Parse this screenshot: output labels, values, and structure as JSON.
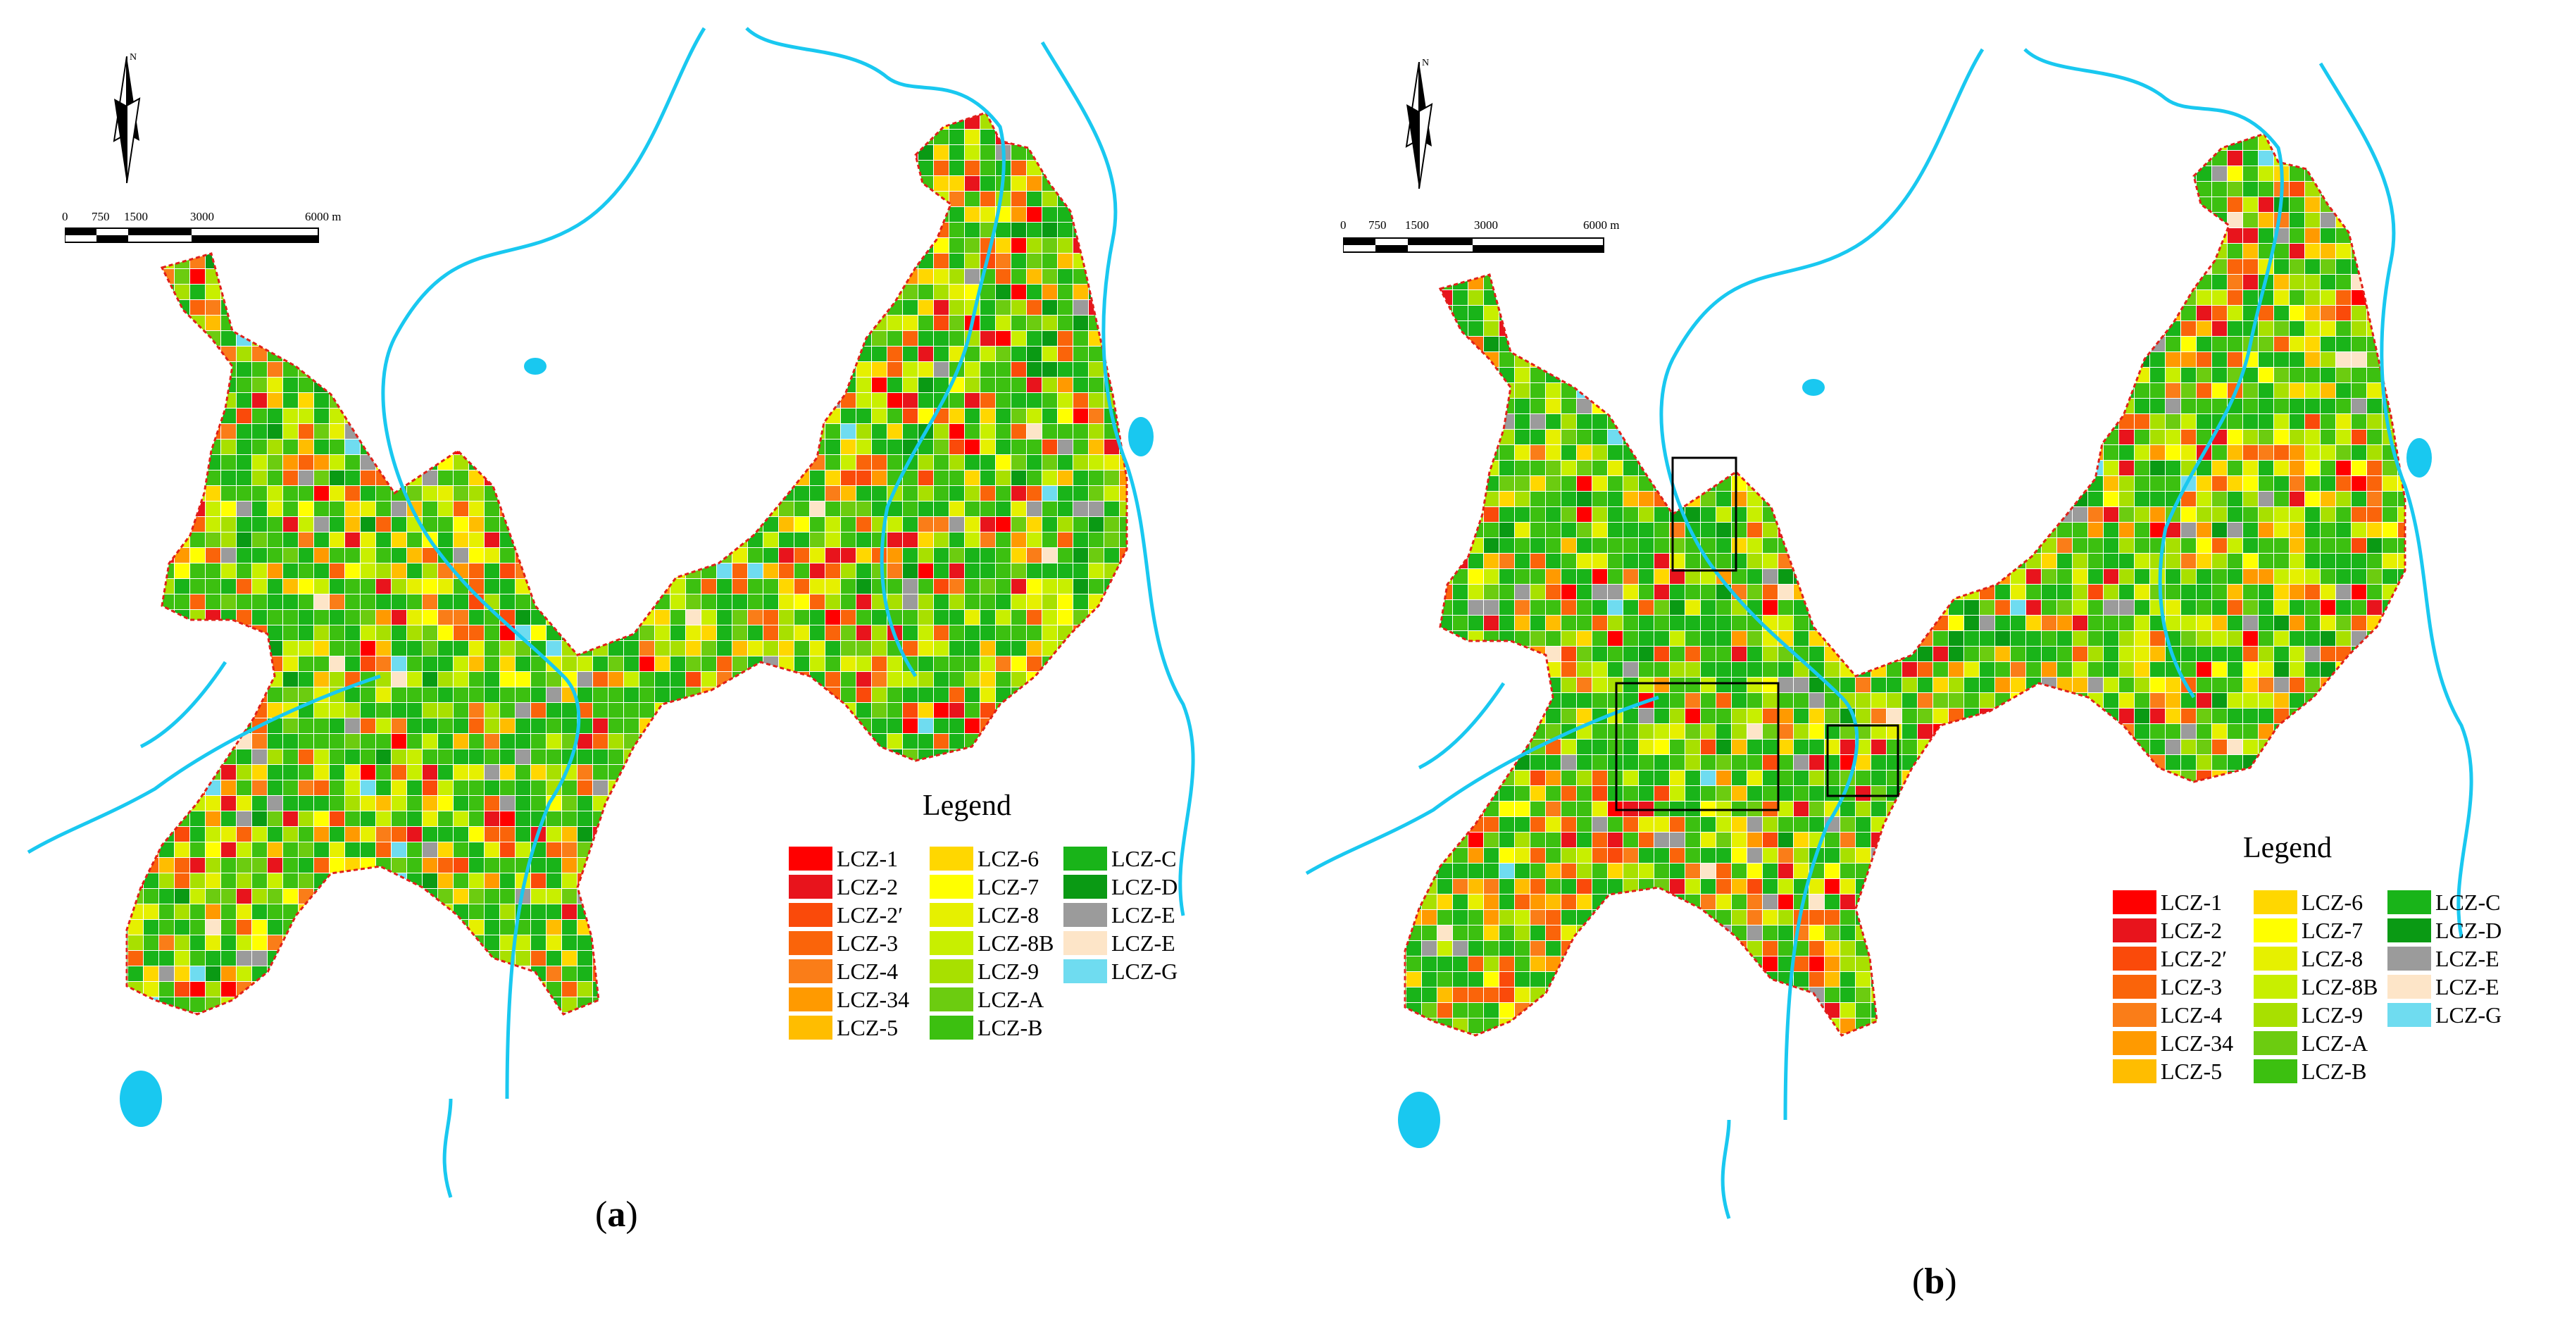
{
  "figure": {
    "panels": [
      {
        "id": "a",
        "caption_open": "(",
        "caption_letter": "a",
        "caption_close": ")",
        "legend_title": "Legend",
        "scale_labels": [
          "0",
          "750",
          "1500",
          "3000",
          "6000 m"
        ],
        "north_label": "N"
      },
      {
        "id": "b",
        "caption_open": "(",
        "caption_letter": "b",
        "caption_close": ")",
        "legend_title": "Legend",
        "scale_labels": [
          "0",
          "750",
          "1500",
          "3000",
          "6000 m"
        ],
        "north_label": "N"
      }
    ],
    "legend_columns": [
      [
        {
          "label": "LCZ-1",
          "color": "#ff0000"
        },
        {
          "label": "LCZ-2",
          "color": "#e8141c"
        },
        {
          "label": "LCZ-2′",
          "color": "#fa4a0a"
        },
        {
          "label": "LCZ-3",
          "color": "#fa640a"
        },
        {
          "label": "LCZ-4",
          "color": "#fa7d18"
        },
        {
          "label": "LCZ-34",
          "color": "#ff9a00"
        },
        {
          "label": "LCZ-5",
          "color": "#ffbd00"
        }
      ],
      [
        {
          "label": "LCZ-6",
          "color": "#ffd700"
        },
        {
          "label": "LCZ-7",
          "color": "#ffff00"
        },
        {
          "label": "LCZ-8",
          "color": "#e6f000"
        },
        {
          "label": "LCZ-8B",
          "color": "#c8ef00"
        },
        {
          "label": "LCZ-9",
          "color": "#a8e000"
        },
        {
          "label": "LCZ-A",
          "color": "#6ccc10"
        },
        {
          "label": "LCZ-B",
          "color": "#3cc010"
        }
      ],
      [
        {
          "label": "LCZ-C",
          "color": "#19b419"
        },
        {
          "label": "LCZ-D",
          "color": "#0a9a14"
        },
        {
          "label": "LCZ-E",
          "color": "#9b9b9b"
        },
        {
          "label": "LCZ-E",
          "color": "#fde5c8"
        },
        {
          "label": "LCZ-G",
          "color": "#6fdcf0"
        }
      ]
    ],
    "colors": {
      "water": "#19c8f0",
      "boundary": "#e0201a",
      "box_outline": "#000000"
    }
  }
}
